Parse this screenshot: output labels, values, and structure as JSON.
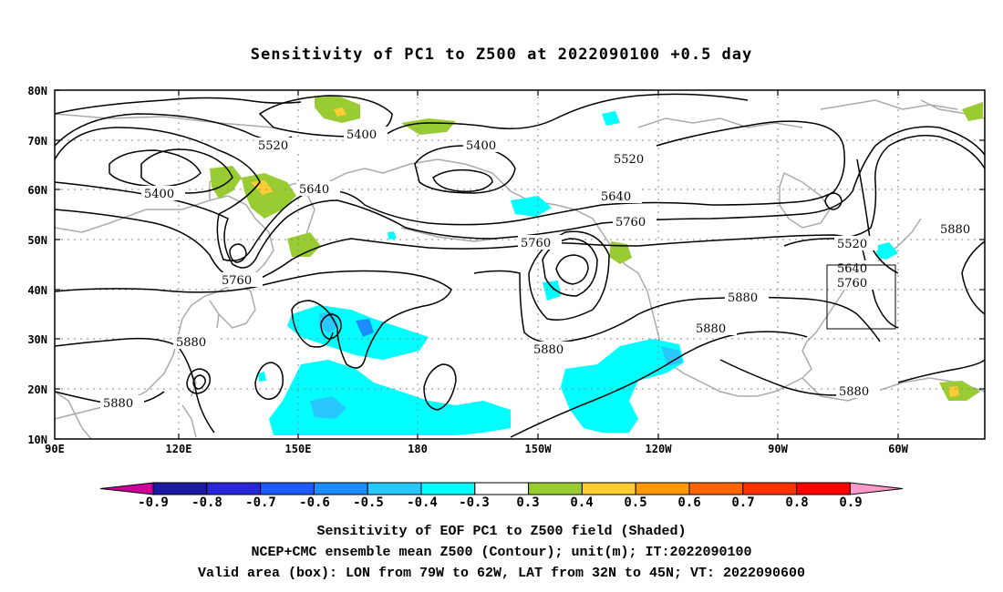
{
  "title": "Sensitivity of PC1 to Z500 at 2022090100 +0.5 day",
  "map": {
    "lat_labels": [
      "80N",
      "70N",
      "60N",
      "50N",
      "40N",
      "30N",
      "20N",
      "10N"
    ],
    "lon_labels": [
      "90E",
      "120E",
      "150E",
      "180",
      "150W",
      "120W",
      "90W",
      "60W"
    ],
    "contour_labels": [
      {
        "text": "5400",
        "id": "c5400-west"
      },
      {
        "text": "5400",
        "id": "c5400-north"
      },
      {
        "text": "5400",
        "id": "c5400-central"
      },
      {
        "text": "5520",
        "id": "c5520-west"
      },
      {
        "text": "5520",
        "id": "c5520-central"
      },
      {
        "text": "5520",
        "id": "c5520-east"
      },
      {
        "text": "5640",
        "id": "c5640-west"
      },
      {
        "text": "5640",
        "id": "c5640-central"
      },
      {
        "text": "5640",
        "id": "c5640-east"
      },
      {
        "text": "5760",
        "id": "c5760-west"
      },
      {
        "text": "5760",
        "id": "c5760-central"
      },
      {
        "text": "5760",
        "id": "c5760-central2"
      },
      {
        "text": "5760",
        "id": "c5760-east"
      },
      {
        "text": "5880",
        "id": "c5880-west1"
      },
      {
        "text": "5880",
        "id": "c5880-west2"
      },
      {
        "text": "5880",
        "id": "c5880-central"
      },
      {
        "text": "5880",
        "id": "c5880-east1"
      },
      {
        "text": "5880",
        "id": "c5880-east2"
      },
      {
        "text": "5880",
        "id": "c5880-east3"
      },
      {
        "text": "5880",
        "id": "c5880-farEast"
      }
    ],
    "valid_box": {
      "lon": [
        "79W",
        "62W"
      ],
      "lat": [
        "32N",
        "45N"
      ]
    }
  },
  "colorbar": {
    "labels": [
      "-0.9",
      "-0.8",
      "-0.7",
      "-0.6",
      "-0.5",
      "-0.4",
      "-0.3",
      "0.3",
      "0.4",
      "0.5",
      "0.6",
      "0.7",
      "0.8",
      "0.9"
    ],
    "colors": [
      "#1a1aa0",
      "#2828d8",
      "#1e5aff",
      "#1e8cff",
      "#28c8ff",
      "#00ffff",
      "#ffffff",
      "#99cc33",
      "#ffcc33",
      "#ff9900",
      "#ff6600",
      "#ff3300",
      "#ff0000"
    ],
    "low_arrow_color": "#cc0099",
    "high_arrow_color": "#ff99cc"
  },
  "captions": [
    "Sensitivity of EOF PC1 to Z500 field (Shaded)",
    "NCEP+CMC ensemble mean Z500 (Contour); unit(m); IT:2022090100",
    "Valid area (box): LON from 79W to 62W, LAT from 32N to 45N; VT: 2022090600"
  ]
}
